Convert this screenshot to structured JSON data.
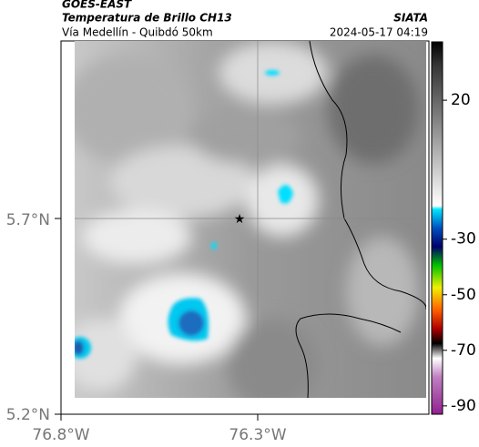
{
  "header": {
    "title": "GOES-EAST",
    "subtitle": "Temperatura de Brillo CH13",
    "source": "SIATA",
    "route": "Vía Medellín - Quibdó 50km",
    "timestamp": "2024-05-17 04:19"
  },
  "map": {
    "lat_ticks": [
      "5.7°N",
      "5.2°N"
    ],
    "lon_ticks": [
      "76.8°W",
      "76.3°W"
    ]
  },
  "colorbar": {
    "lim": [
      -93,
      41
    ],
    "ticks": [
      20,
      -30,
      -50,
      -70,
      -90
    ]
  }
}
